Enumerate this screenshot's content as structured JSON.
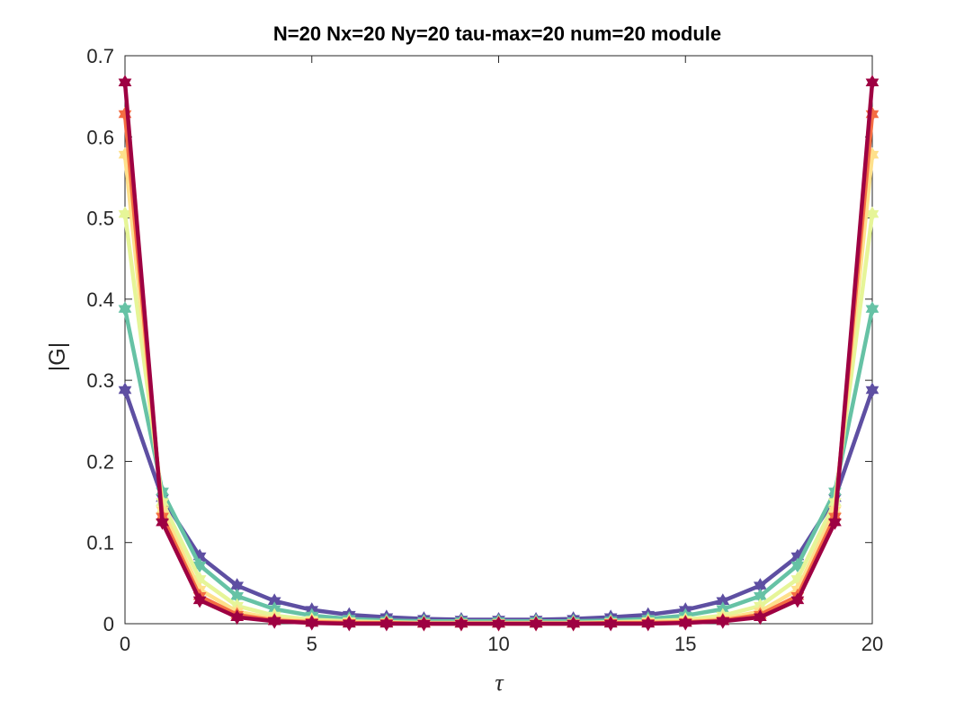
{
  "chart_data": {
    "type": "line",
    "title": "N=20 Nx=20 Ny=20 tau-max=20 num=20 module",
    "xlabel": "τ",
    "ylabel": "|G|",
    "xlim": [
      0,
      20
    ],
    "ylim": [
      0,
      0.7
    ],
    "xticks": [
      "0",
      "5",
      "10",
      "15",
      "20"
    ],
    "yticks": [
      "0",
      "0.1",
      "0.2",
      "0.3",
      "0.4",
      "0.5",
      "0.6",
      "0.7"
    ],
    "grid": false,
    "marker": "hexagram",
    "x": [
      0,
      1,
      2,
      3,
      4,
      5,
      6,
      7,
      8,
      9,
      10,
      11,
      12,
      13,
      14,
      15,
      16,
      17,
      18,
      19,
      20
    ],
    "series": [
      {
        "color": "#5e4fa2",
        "values": [
          0.288,
          0.155,
          0.083,
          0.047,
          0.028,
          0.017,
          0.011,
          0.008,
          0.006,
          0.005,
          0.005,
          0.005,
          0.006,
          0.008,
          0.011,
          0.017,
          0.028,
          0.047,
          0.083,
          0.155,
          0.288
        ]
      },
      {
        "color": "#66c2a5",
        "values": [
          0.388,
          0.163,
          0.072,
          0.034,
          0.018,
          0.01,
          0.006,
          0.004,
          0.003,
          0.003,
          0.003,
          0.003,
          0.003,
          0.004,
          0.006,
          0.01,
          0.018,
          0.034,
          0.072,
          0.163,
          0.388
        ]
      },
      {
        "color": "#e6f598",
        "values": [
          0.505,
          0.15,
          0.055,
          0.022,
          0.01,
          0.005,
          0.003,
          0.002,
          0.001,
          0.001,
          0.001,
          0.001,
          0.001,
          0.002,
          0.003,
          0.005,
          0.01,
          0.022,
          0.055,
          0.15,
          0.505
        ]
      },
      {
        "color": "#fee08b",
        "values": [
          0.578,
          0.14,
          0.042,
          0.015,
          0.006,
          0.003,
          0.002,
          0.001,
          0.001,
          0.001,
          0.001,
          0.001,
          0.001,
          0.001,
          0.002,
          0.003,
          0.006,
          0.015,
          0.042,
          0.14,
          0.578
        ]
      },
      {
        "color": "#f46d43",
        "values": [
          0.628,
          0.132,
          0.034,
          0.011,
          0.004,
          0.002,
          0.001,
          0.001,
          0.0,
          0.0,
          0.0,
          0.0,
          0.0,
          0.001,
          0.001,
          0.002,
          0.004,
          0.011,
          0.034,
          0.132,
          0.628
        ]
      },
      {
        "color": "#9e0142",
        "values": [
          0.667,
          0.125,
          0.029,
          0.008,
          0.003,
          0.001,
          0.0,
          0.0,
          0.0,
          0.0,
          0.0,
          0.0,
          0.0,
          0.0,
          0.0,
          0.001,
          0.003,
          0.008,
          0.029,
          0.125,
          0.667
        ]
      }
    ]
  }
}
